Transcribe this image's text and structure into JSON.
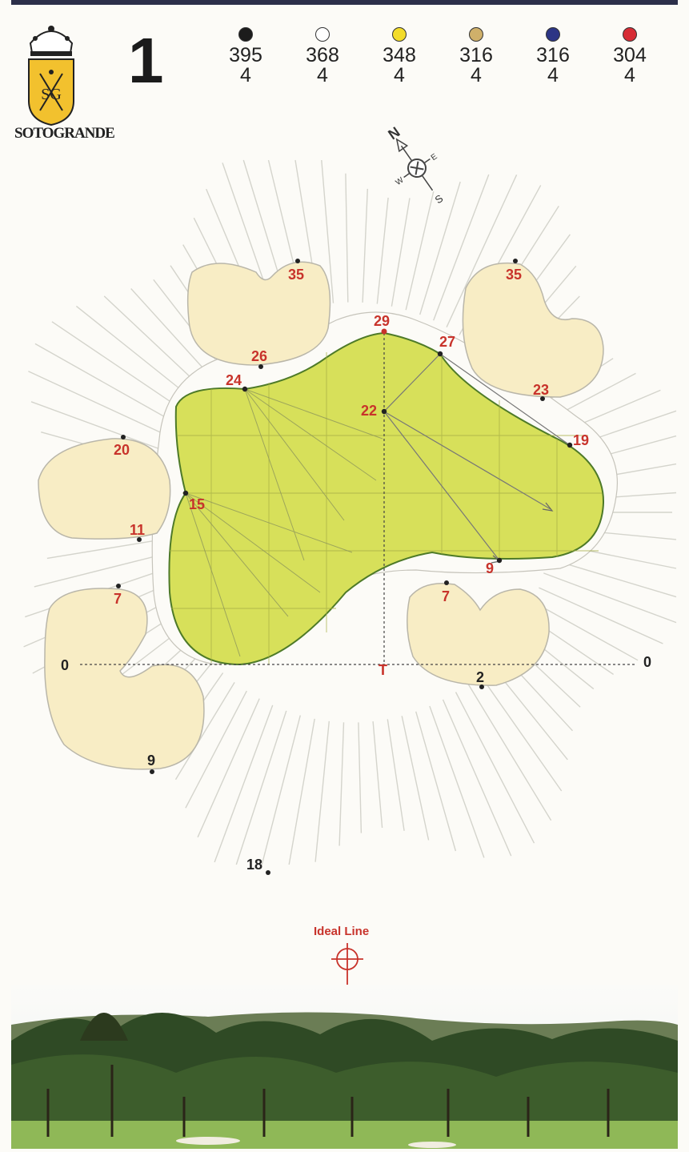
{
  "logo": {
    "monogram": "SG",
    "text": "SOTOGRANDE"
  },
  "hole": {
    "number": "1"
  },
  "tees": [
    {
      "color": "#1c1c1c",
      "distance": "395",
      "par": "4"
    },
    {
      "color": "#ffffff",
      "distance": "368",
      "par": "4"
    },
    {
      "color": "#f3dc2a",
      "distance": "348",
      "par": "4"
    },
    {
      "color": "#cfb06a",
      "distance": "316",
      "par": "4"
    },
    {
      "color": "#2c3585",
      "distance": "316",
      "par": "4"
    },
    {
      "color": "#d72c35",
      "distance": "304",
      "par": "4"
    }
  ],
  "compass": {
    "n": "N",
    "s": "S",
    "e": "E",
    "w": "W"
  },
  "green_points": {
    "top": "29",
    "top_right": "27",
    "center": "22",
    "left_top": "24",
    "right": "19",
    "left": "15",
    "bottom": "9",
    "tee_marker": "T"
  },
  "bunker_points": {
    "top_left_top": "35",
    "top_left_bottom": "26",
    "top_right_top": "35",
    "top_right_bottom": "23",
    "left_top": "20",
    "left_bottom": "11",
    "bottom_left_top": "7",
    "bottom_left_bottom": "9",
    "bottom_right_top": "7",
    "bottom_right_bottom": "2"
  },
  "axis": {
    "left": "0",
    "right": "0"
  },
  "front_point": "18",
  "ideal_line": {
    "label": "Ideal Line"
  },
  "colors": {
    "green": "#d7e05a",
    "green_edge": "#4e7a28",
    "bunker": "#f8edc5",
    "accent_red": "#c8332b"
  }
}
